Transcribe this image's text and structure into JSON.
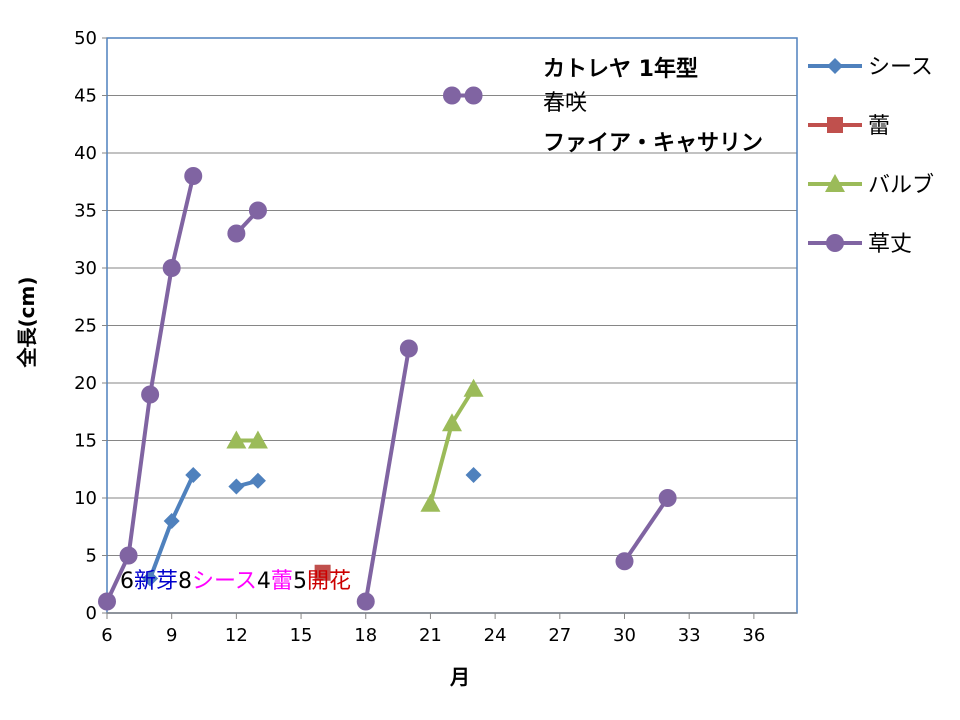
{
  "chart_data": {
    "type": "line",
    "xlabel": "月",
    "ylabel": "全長(cm)",
    "xlim": [
      6,
      38
    ],
    "ylim": [
      0,
      50
    ],
    "xticks": [
      "6",
      "9",
      "12",
      "15",
      "18",
      "21",
      "24",
      "27",
      "30",
      "33",
      "36"
    ],
    "yticks": [
      "0",
      "5",
      "10",
      "15",
      "20",
      "25",
      "30",
      "35",
      "40",
      "45",
      "50"
    ],
    "grid": true,
    "legend_position": "right",
    "annotations": {
      "title_line1": "カトレヤ  1年型",
      "title_line2": "春咲",
      "title_line3": "ファイア・キャサリン"
    },
    "stage_labels": [
      {
        "number": "6",
        "label": "新芽",
        "color": "#0000cc"
      },
      {
        "number": "8",
        "label": "シース",
        "color": "#ff00ff"
      },
      {
        "number": "4",
        "label": "蕾",
        "color": "#ff00ff"
      },
      {
        "number": "5",
        "label": "開花",
        "color": "#cc0000"
      }
    ],
    "series": [
      {
        "name": "シース",
        "color": "#4f81bd",
        "marker": "diamond",
        "segments": [
          [
            [
              8,
              3
            ],
            [
              9,
              8
            ],
            [
              10,
              12
            ]
          ],
          [
            [
              12,
              11
            ],
            [
              13,
              11.5
            ]
          ],
          [
            [
              23,
              12
            ]
          ]
        ]
      },
      {
        "name": "蕾",
        "color": "#c0504d",
        "marker": "square",
        "segments": [
          [
            [
              16,
              3.5
            ]
          ]
        ]
      },
      {
        "name": "バルブ",
        "color": "#9bbb59",
        "marker": "triangle",
        "segments": [
          [
            [
              12,
              15
            ],
            [
              13,
              15
            ]
          ],
          [
            [
              21,
              9.5
            ],
            [
              22,
              16.5
            ],
            [
              23,
              19.5
            ]
          ]
        ]
      },
      {
        "name": "草丈",
        "color": "#8064a2",
        "marker": "circle",
        "segments": [
          [
            [
              6,
              1
            ],
            [
              7,
              5
            ],
            [
              8,
              19
            ],
            [
              9,
              30
            ],
            [
              10,
              38
            ]
          ],
          [
            [
              12,
              33
            ],
            [
              13,
              35
            ]
          ],
          [
            [
              18,
              1
            ],
            [
              20,
              23
            ]
          ],
          [
            [
              22,
              45
            ],
            [
              23,
              45
            ]
          ],
          [
            [
              30,
              4.5
            ],
            [
              32,
              10
            ]
          ]
        ]
      }
    ]
  }
}
